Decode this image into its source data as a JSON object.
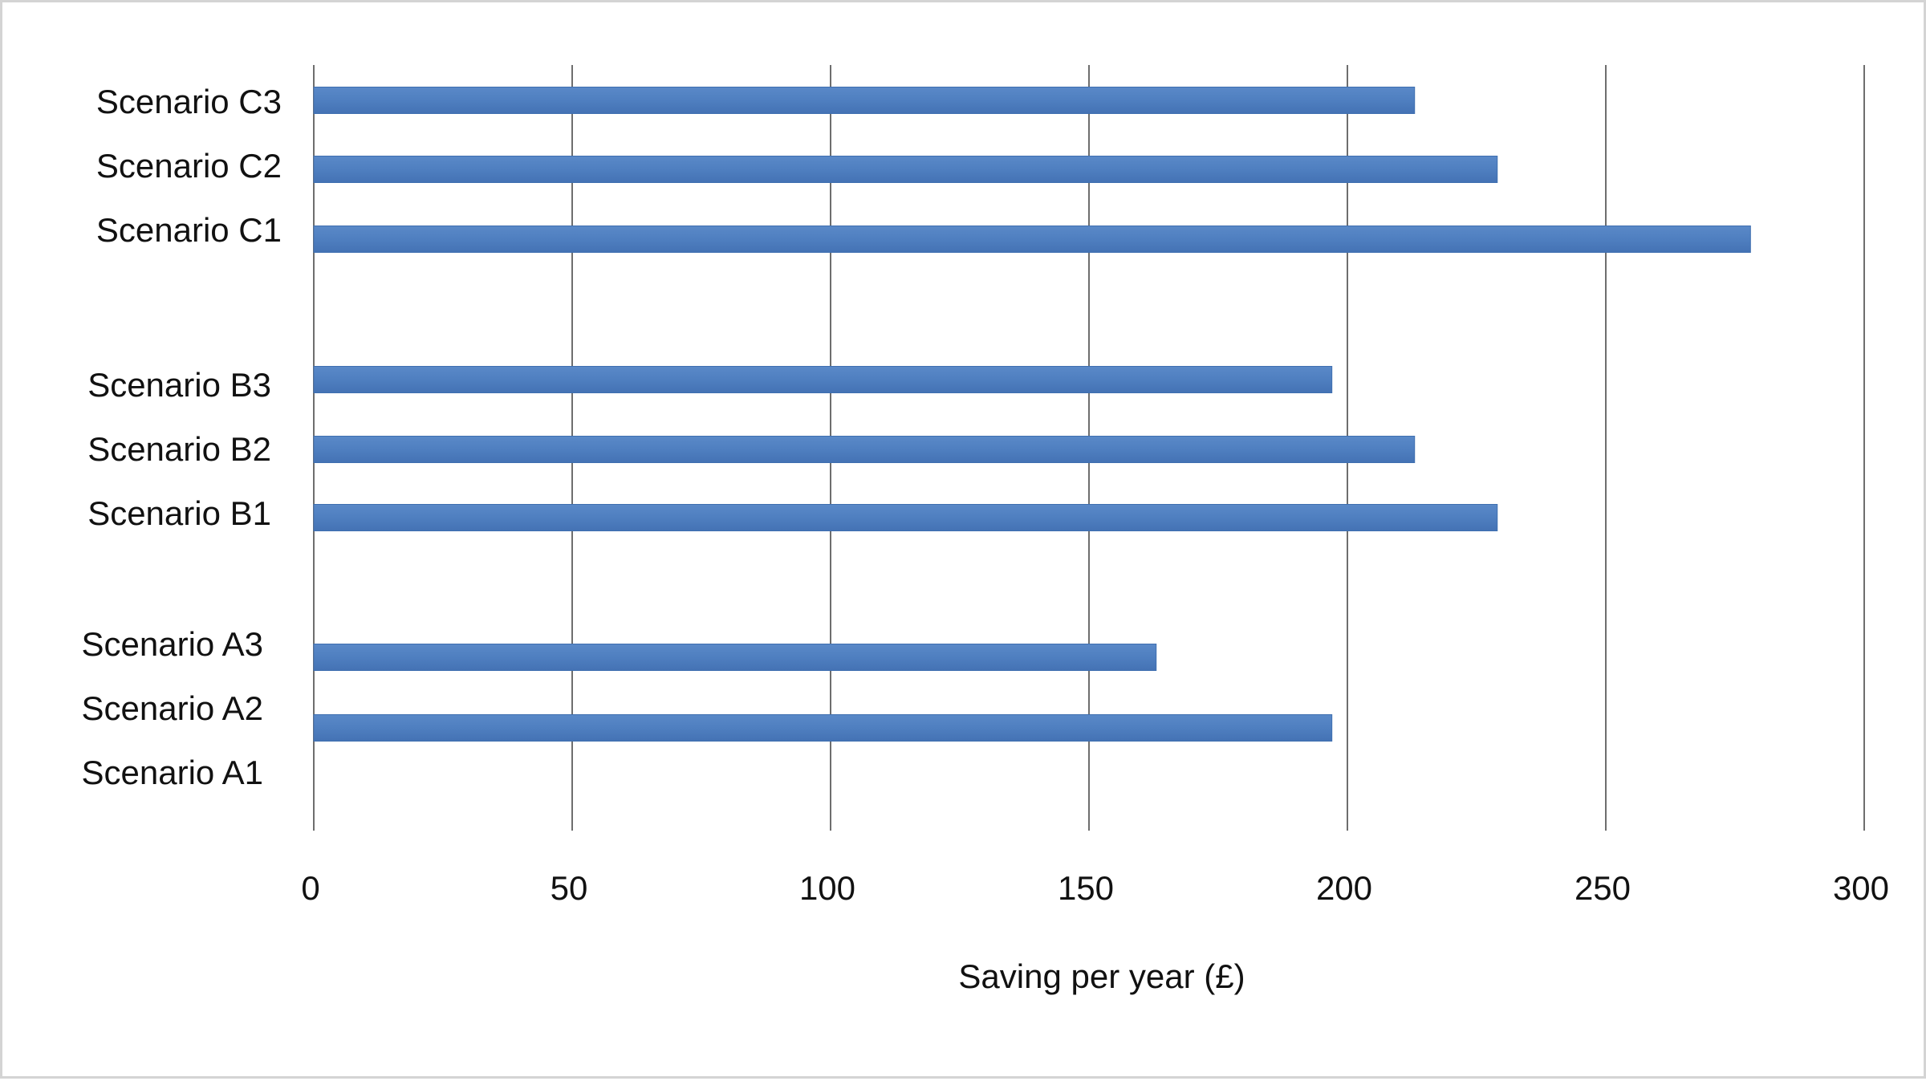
{
  "chart_data": {
    "type": "bar",
    "orientation": "horizontal",
    "categories": [
      "Scenario A1",
      "Scenario A2",
      "Scenario A3",
      "Scenario B1",
      "Scenario B2",
      "Scenario B3",
      "Scenario C1",
      "Scenario C2",
      "Scenario C3"
    ],
    "values": [
      0,
      197,
      163,
      229,
      213,
      197,
      278,
      229,
      213
    ],
    "xlabel": "Saving per year (£)",
    "ylabel": "",
    "title": "",
    "xlim": [
      0,
      300
    ],
    "xticks": [
      "0",
      "50",
      "100",
      "150",
      "200",
      "250",
      "300"
    ],
    "grid": "vertical",
    "legend": "none",
    "bar_color": "#4f7fc0",
    "grid_color": "#6e6e6e"
  }
}
